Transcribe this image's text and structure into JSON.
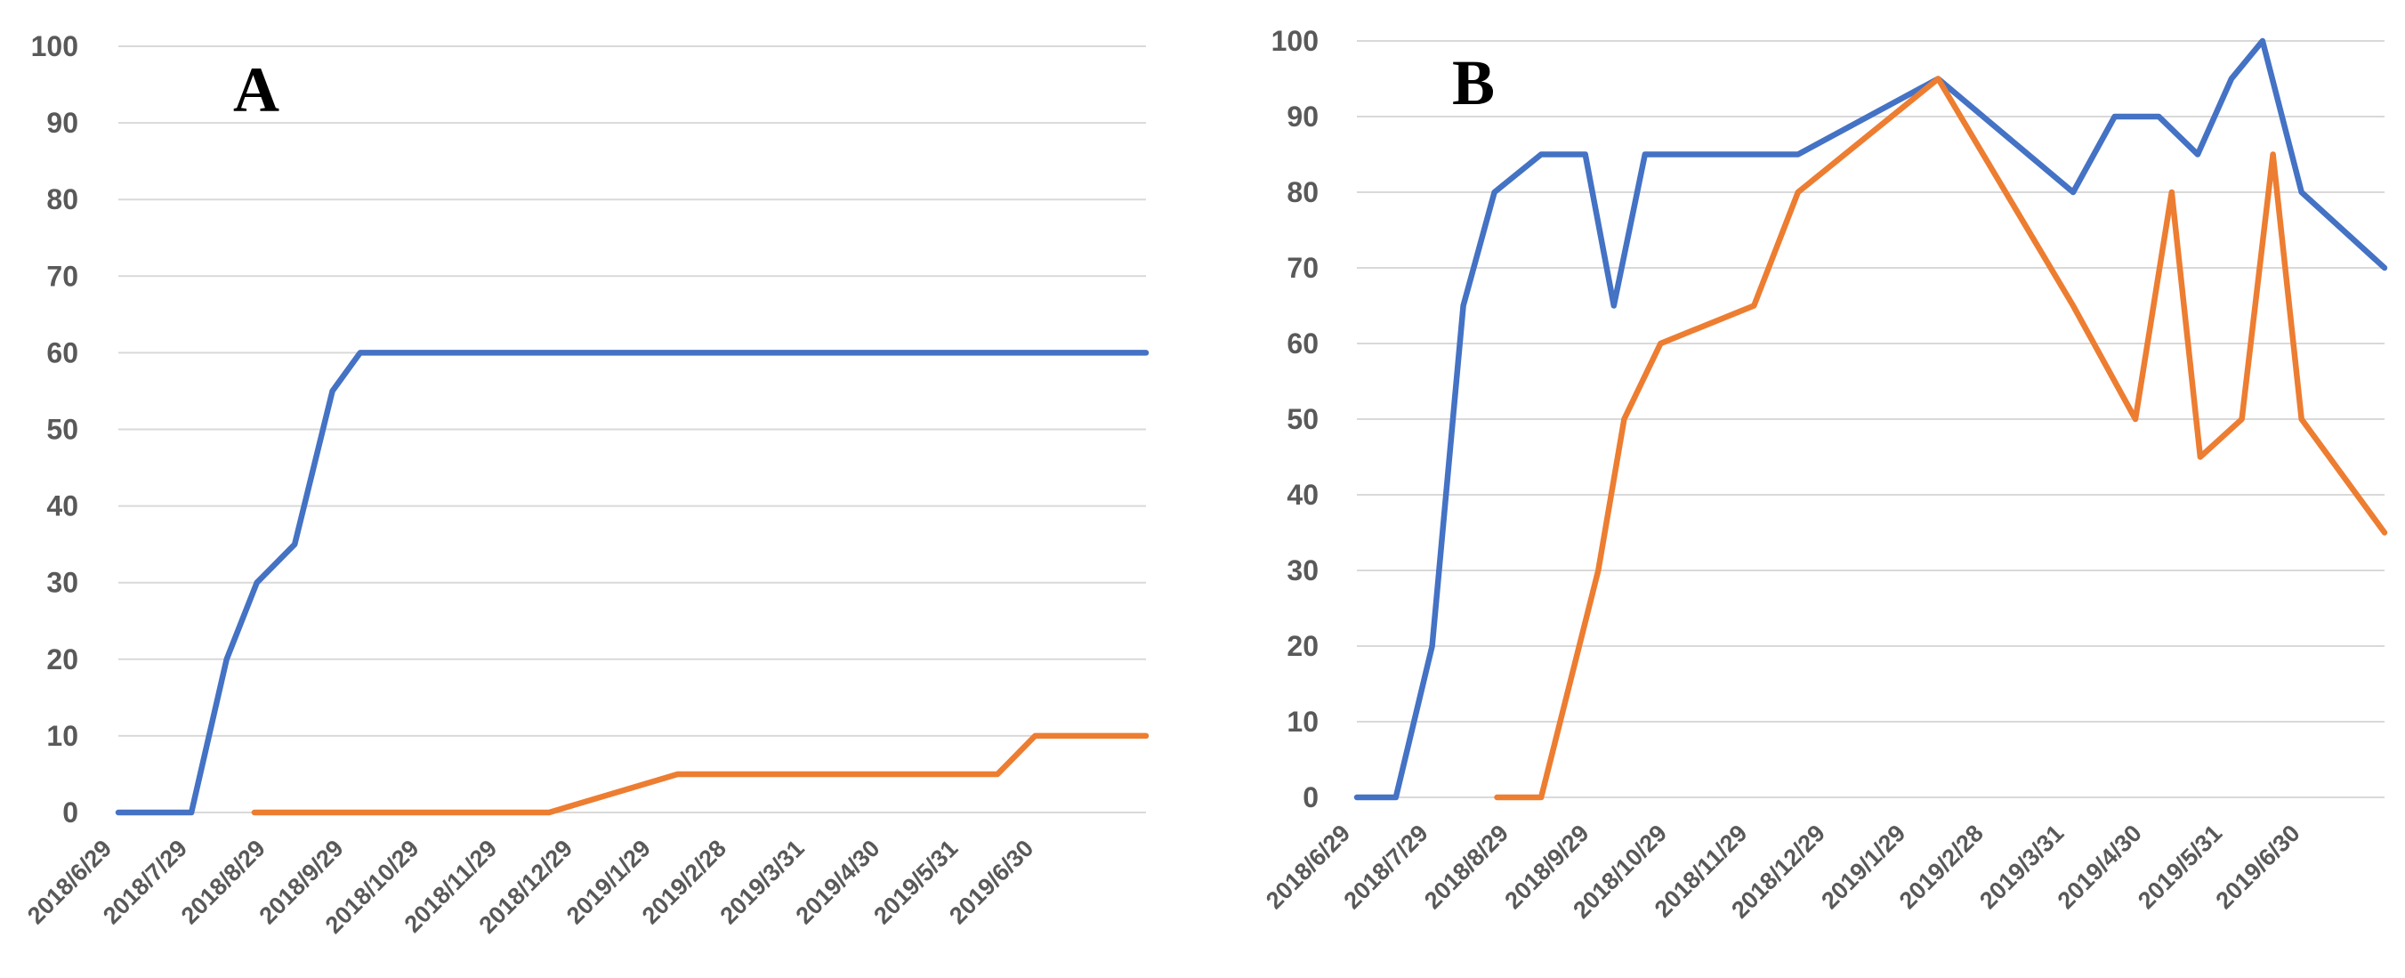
{
  "chart_data": [
    {
      "type": "line",
      "panel_label": "A",
      "ylim": [
        0,
        100
      ],
      "yticks": [
        0,
        10,
        20,
        30,
        40,
        50,
        60,
        70,
        80,
        90,
        100
      ],
      "xlim": [
        "2018-06-29",
        "2019-08-11"
      ],
      "xtick_labels": [
        "2018/6/29",
        "2018/7/29",
        "2018/8/29",
        "2018/9/29",
        "2018/10/29",
        "2018/11/29",
        "2018/12/29",
        "2019/1/29",
        "2019/2/28",
        "2019/3/31",
        "2019/4/30",
        "2019/5/31",
        "2019/6/30"
      ],
      "grid": true,
      "series": [
        {
          "color": "#4472c4",
          "points": [
            [
              "2018-06-29",
              0
            ],
            [
              "2018-07-28",
              0
            ],
            [
              "2018-08-11",
              20
            ],
            [
              "2018-08-23",
              30
            ],
            [
              "2018-09-07",
              35
            ],
            [
              "2018-09-22",
              55
            ],
            [
              "2018-10-03",
              60
            ],
            [
              "2019-08-11",
              60
            ]
          ]
        },
        {
          "color": "#ed7d31",
          "points": [
            [
              "2018-08-22",
              0
            ],
            [
              "2018-12-17",
              0
            ],
            [
              "2019-02-06",
              5
            ],
            [
              "2019-06-13",
              5
            ],
            [
              "2019-06-28",
              10
            ],
            [
              "2019-08-11",
              10
            ]
          ]
        }
      ]
    },
    {
      "type": "line",
      "panel_label": "B",
      "ylim": [
        0,
        100
      ],
      "yticks": [
        0,
        10,
        20,
        30,
        40,
        50,
        60,
        70,
        80,
        90,
        100
      ],
      "xlim": [
        "2018-06-29",
        "2019-07-30"
      ],
      "xtick_labels": [
        "2018/6/29",
        "2018/7/29",
        "2018/8/29",
        "2018/9/29",
        "2018/10/29",
        "2018/11/29",
        "2018/12/29",
        "2019/1/29",
        "2019/2/28",
        "2019/3/31",
        "2019/4/30",
        "2019/5/31",
        "2019/6/30"
      ],
      "grid": true,
      "series": [
        {
          "color": "#4472c4",
          "points": [
            [
              "2018-06-29",
              0
            ],
            [
              "2018-07-14",
              0
            ],
            [
              "2018-07-28",
              20
            ],
            [
              "2018-08-09",
              65
            ],
            [
              "2018-08-21",
              80
            ],
            [
              "2018-09-08",
              85
            ],
            [
              "2018-09-25",
              85
            ],
            [
              "2018-10-06",
              65
            ],
            [
              "2018-10-18",
              85
            ],
            [
              "2018-12-16",
              85
            ],
            [
              "2019-02-08",
              95
            ],
            [
              "2019-04-01",
              80
            ],
            [
              "2019-04-17",
              90
            ],
            [
              "2019-05-04",
              90
            ],
            [
              "2019-05-19",
              85
            ],
            [
              "2019-06-01",
              95
            ],
            [
              "2019-06-13",
              100
            ],
            [
              "2019-06-28",
              80
            ],
            [
              "2019-07-30",
              70
            ]
          ]
        },
        {
          "color": "#ed7d31",
          "points": [
            [
              "2018-08-22",
              0
            ],
            [
              "2018-09-08",
              0
            ],
            [
              "2018-09-30",
              30
            ],
            [
              "2018-10-10",
              50
            ],
            [
              "2018-10-24",
              60
            ],
            [
              "2018-11-29",
              65
            ],
            [
              "2018-12-16",
              80
            ],
            [
              "2019-02-08",
              95
            ],
            [
              "2019-04-01",
              65
            ],
            [
              "2019-04-25",
              50
            ],
            [
              "2019-05-09",
              80
            ],
            [
              "2019-05-20",
              45
            ],
            [
              "2019-06-05",
              50
            ],
            [
              "2019-06-17",
              85
            ],
            [
              "2019-06-28",
              50
            ],
            [
              "2019-07-30",
              35
            ]
          ]
        }
      ]
    }
  ]
}
